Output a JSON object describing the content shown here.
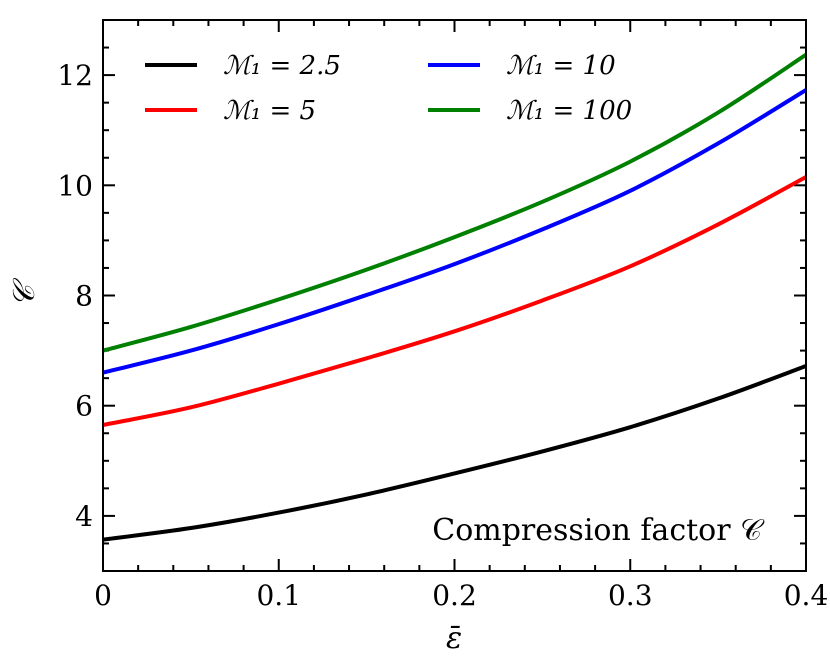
{
  "chart_data": {
    "type": "line",
    "title": "",
    "annotation": "Compression factor 𝒞",
    "xlabel": "ε̄",
    "ylabel": "𝒞",
    "xlim": [
      0,
      0.4
    ],
    "ylim": [
      3,
      13
    ],
    "x_ticks": [
      0,
      0.1,
      0.2,
      0.3,
      0.4
    ],
    "x_tick_labels": [
      "0",
      "0.1",
      "0.2",
      "0.3",
      "0.4"
    ],
    "y_ticks": [
      4,
      6,
      8,
      10,
      12
    ],
    "y_tick_labels": [
      "4",
      "6",
      "8",
      "10",
      "12"
    ],
    "x_minor_step": 0.02,
    "y_minor_step": 0.5,
    "legend_position": "top-left",
    "x": [
      0,
      0.05,
      0.1,
      0.15,
      0.2,
      0.25,
      0.3,
      0.35,
      0.4
    ],
    "series": [
      {
        "name": "ℳ₁ = 2.5",
        "color": "#000000",
        "values": [
          3.57,
          3.78,
          4.06,
          4.39,
          4.77,
          5.17,
          5.61,
          6.13,
          6.72
        ]
      },
      {
        "name": "ℳ₁ = 5",
        "color": "#ff0000",
        "values": [
          5.65,
          5.97,
          6.4,
          6.86,
          7.35,
          7.91,
          8.53,
          9.29,
          10.15
        ]
      },
      {
        "name": "ℳ₁ = 10",
        "color": "#0000ff",
        "values": [
          6.6,
          7.0,
          7.48,
          8.01,
          8.57,
          9.2,
          9.9,
          10.76,
          11.73
        ]
      },
      {
        "name": "ℳ₁ = 100",
        "color": "#008000",
        "values": [
          7.0,
          7.43,
          7.93,
          8.47,
          9.06,
          9.7,
          10.43,
          11.32,
          12.37
        ]
      }
    ]
  }
}
